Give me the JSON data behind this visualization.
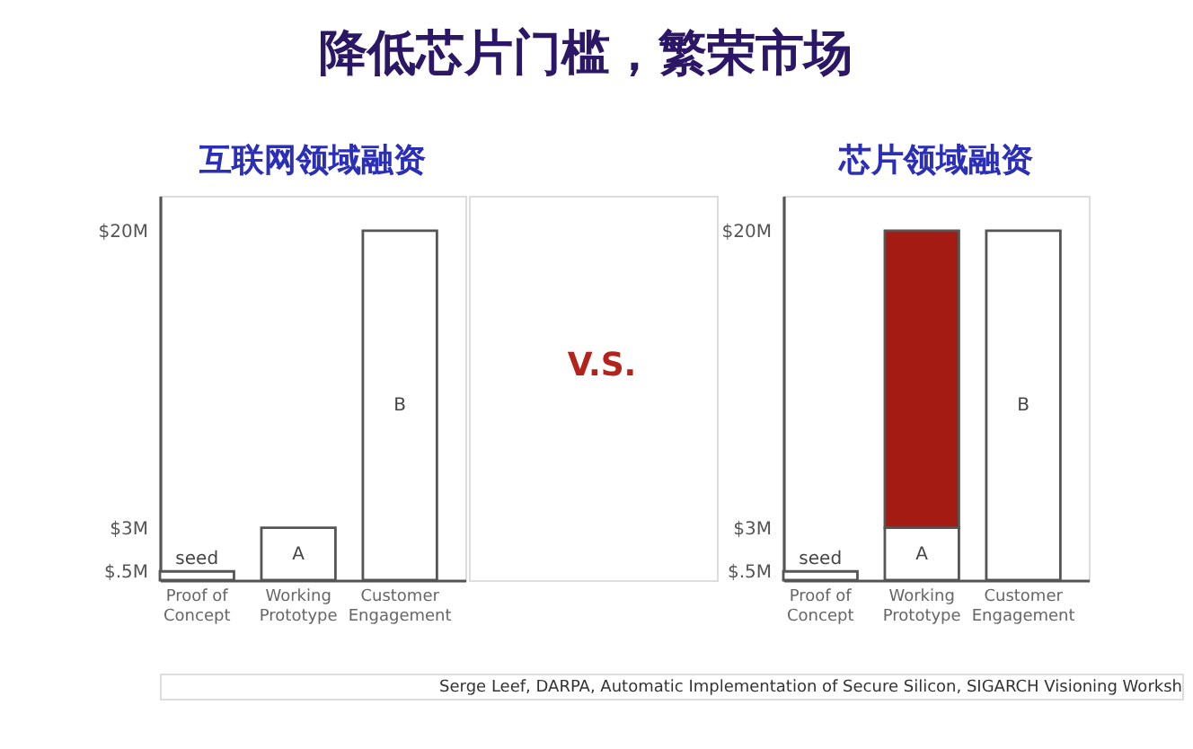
{
  "chart_data": [
    {
      "type": "other",
      "title": "降低芯片门槛，繁荣市场",
      "annotations": [
        "V.S.",
        "Serge Leef, DARPA, Automatic Implementation of Secure Silicon, SIGARCH Visioning Worksh"
      ]
    },
    {
      "type": "bar",
      "title": "互联网领域融资",
      "categories": [
        "Proof of Concept",
        "Working Prototype",
        "Customer Engagement"
      ],
      "series": [
        {
          "color": "#ffffff",
          "values": [
            0.5,
            3,
            20
          ],
          "value_labels": [
            "seed",
            "A",
            "B"
          ]
        }
      ],
      "ylim": [
        0,
        22
      ],
      "yticks": [
        {
          "value": 0.5,
          "label": "$.5M"
        },
        {
          "value": 3,
          "label": "$3M"
        },
        {
          "value": 20,
          "label": "$20M"
        }
      ]
    },
    {
      "type": "bar",
      "title": "芯片领域融资",
      "stacked": true,
      "categories": [
        "Proof of Concept",
        "Working Prototype",
        "Customer Engagement"
      ],
      "series": [
        {
          "color": "#ffffff",
          "values": [
            0.5,
            3,
            20
          ],
          "value_labels": [
            "seed",
            "A",
            "B"
          ]
        },
        {
          "color": "#a31b12",
          "values": [
            null,
            17,
            null
          ]
        }
      ],
      "ylim": [
        0,
        22
      ],
      "yticks": [
        {
          "value": 0.5,
          "label": "$.5M"
        },
        {
          "value": 3,
          "label": "$3M"
        },
        {
          "value": 20,
          "label": "$20M"
        }
      ]
    }
  ]
}
